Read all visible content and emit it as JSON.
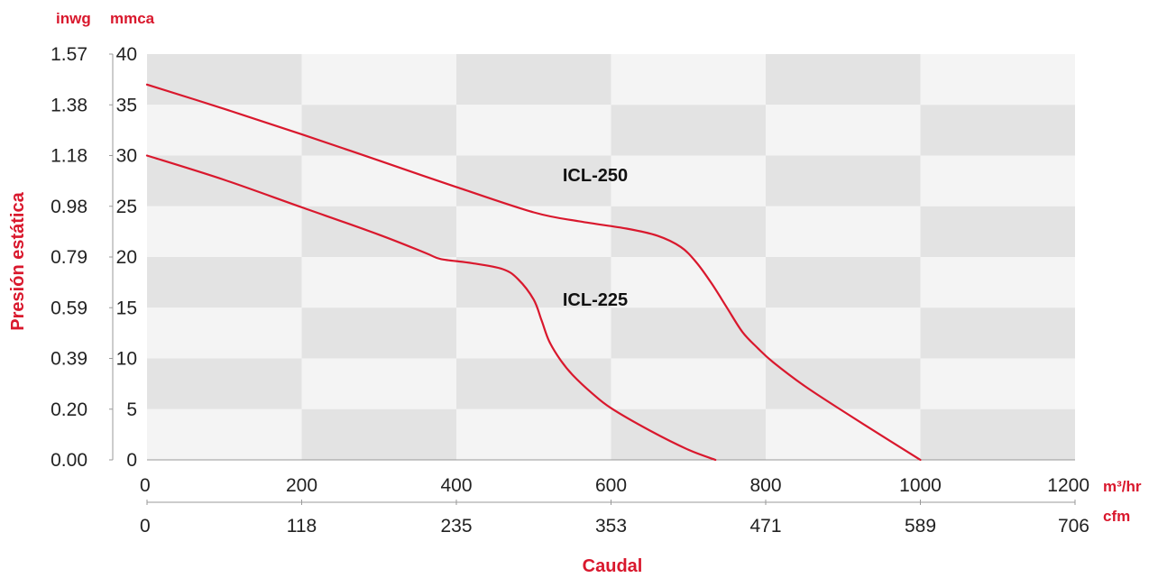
{
  "chart_data": {
    "type": "line",
    "x_units": "m³/hr",
    "x_secondary_units": "cfm",
    "y_units": "mmca",
    "y_secondary_units": "inwg",
    "xlabel": "Caudal",
    "ylabel": "Presión estática",
    "xlim": [
      0,
      1200
    ],
    "ylim": [
      0,
      40
    ],
    "x_ticks": [
      "0",
      "200",
      "400",
      "600",
      "800",
      "1000",
      "1200"
    ],
    "x_secondary_ticks": [
      "0",
      "118",
      "235",
      "353",
      "471",
      "589",
      "706"
    ],
    "y_ticks": [
      "0",
      "5",
      "10",
      "15",
      "20",
      "25",
      "30",
      "35",
      "40"
    ],
    "y_secondary_ticks": [
      "0.00",
      "0.20",
      "0.39",
      "0.59",
      "0.79",
      "0.98",
      "1.18",
      "1.38",
      "1.57"
    ],
    "series": [
      {
        "name": "ICL-250",
        "color": "#d9182d",
        "x": [
          0,
          100,
          200,
          300,
          400,
          500,
          560,
          620,
          660,
          690,
          710,
          730,
          750,
          770,
          790,
          810,
          850,
          900,
          960,
          1000
        ],
        "y": [
          37,
          34.6,
          32.1,
          29.5,
          26.9,
          24.4,
          23.5,
          22.8,
          22.1,
          21,
          19.5,
          17.4,
          15,
          12.6,
          11,
          9.6,
          7.3,
          4.8,
          1.9,
          0
        ]
      },
      {
        "name": "ICL-225",
        "color": "#d9182d",
        "x": [
          0,
          100,
          200,
          300,
          360,
          380,
          420,
          460,
          480,
          500,
          510,
          520,
          535,
          550,
          575,
          600,
          650,
          700,
          735
        ],
        "y": [
          30,
          27.6,
          24.9,
          22.2,
          20.4,
          19.8,
          19.4,
          18.8,
          17.8,
          15.8,
          13.8,
          11.7,
          9.8,
          8.4,
          6.6,
          5.1,
          2.9,
          1.0,
          0
        ]
      }
    ]
  }
}
